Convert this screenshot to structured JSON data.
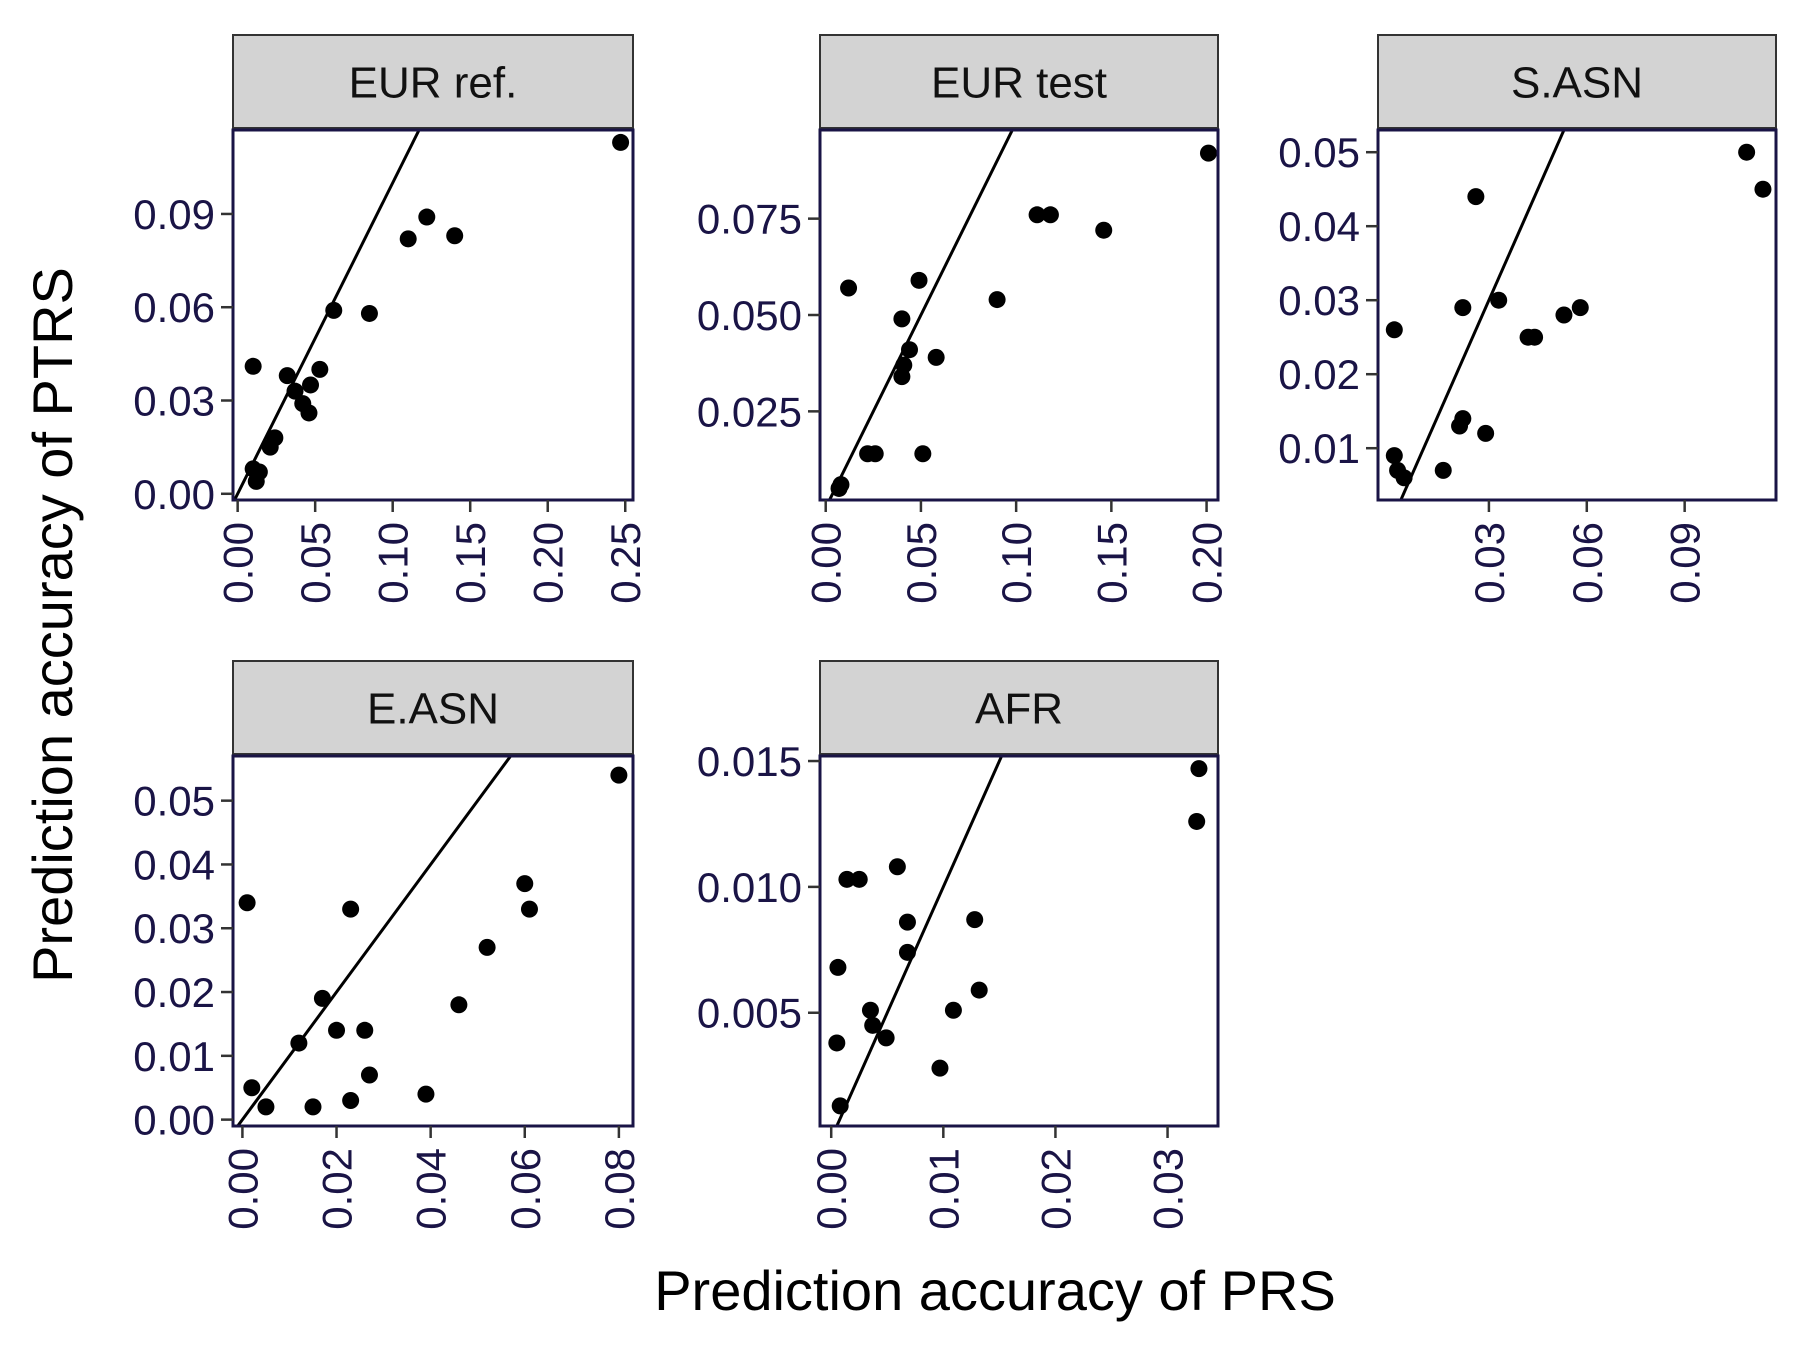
{
  "chart_data": {
    "type": "scatter",
    "xlabel": "Prediction accuracy of PRS",
    "ylabel": "Prediction accuracy of PTRS",
    "reference_line": "y = x",
    "grid": false,
    "legend": "none",
    "colors": {
      "point": "#000000",
      "panel_border": "#1a1446",
      "strip_fill": "#d3d3d3",
      "tick_text": "#1a1446"
    },
    "panels": [
      {
        "title": "EUR ref.",
        "xlim": [
          -0.003,
          0.255
        ],
        "ylim": [
          -0.002,
          0.117
        ],
        "xticks": [
          "0.00",
          "0.05",
          "0.10",
          "0.15",
          "0.20",
          "0.25"
        ],
        "xtick_values": [
          0,
          0.05,
          0.1,
          0.15,
          0.2,
          0.25
        ],
        "yticks": [
          "0.00",
          "0.03",
          "0.06",
          "0.09"
        ],
        "ytick_values": [
          0,
          0.03,
          0.06,
          0.09
        ],
        "x": [
          0.247,
          0.122,
          0.11,
          0.14,
          0.085,
          0.062,
          0.053,
          0.047,
          0.046,
          0.042,
          0.037,
          0.032,
          0.024,
          0.021,
          0.012,
          0.01,
          0.014,
          0.01
        ],
        "y": [
          0.113,
          0.089,
          0.082,
          0.083,
          0.058,
          0.059,
          0.04,
          0.035,
          0.026,
          0.029,
          0.033,
          0.038,
          0.018,
          0.015,
          0.004,
          0.008,
          0.007,
          0.041
        ]
      },
      {
        "title": "EUR test",
        "xlim": [
          -0.003,
          0.206
        ],
        "ylim": [
          0.002,
          0.098
        ],
        "xticks": [
          "0.00",
          "0.05",
          "0.10",
          "0.15",
          "0.20"
        ],
        "xtick_values": [
          0,
          0.05,
          0.1,
          0.15,
          0.2
        ],
        "yticks": [
          "0.025",
          "0.050",
          "0.075"
        ],
        "ytick_values": [
          0.025,
          0.05,
          0.075
        ],
        "x": [
          0.201,
          0.118,
          0.111,
          0.146,
          0.09,
          0.049,
          0.058,
          0.044,
          0.041,
          0.04,
          0.04,
          0.012,
          0.022,
          0.026,
          0.051,
          0.008,
          0.007
        ],
        "y": [
          0.092,
          0.076,
          0.076,
          0.072,
          0.054,
          0.059,
          0.039,
          0.041,
          0.037,
          0.034,
          0.049,
          0.057,
          0.014,
          0.014,
          0.014,
          0.006,
          0.005
        ]
      },
      {
        "title": "S.ASN",
        "xlim": [
          -0.004,
          0.118
        ],
        "ylim": [
          0.003,
          0.053
        ],
        "xticks": [
          "0.03",
          "0.06",
          "0.09"
        ],
        "xtick_values": [
          0.03,
          0.06,
          0.09
        ],
        "yticks": [
          "0.01",
          "0.02",
          "0.03",
          "0.04",
          "0.05"
        ],
        "ytick_values": [
          0.01,
          0.02,
          0.03,
          0.04,
          0.05
        ],
        "x": [
          0.109,
          0.114,
          0.026,
          0.022,
          0.033,
          0.058,
          0.053,
          0.044,
          0.042,
          0.001,
          0.022,
          0.021,
          0.029,
          0.016,
          0.001,
          0.002,
          0.004
        ],
        "y": [
          0.05,
          0.045,
          0.044,
          0.029,
          0.03,
          0.029,
          0.028,
          0.025,
          0.025,
          0.026,
          0.014,
          0.013,
          0.012,
          0.007,
          0.009,
          0.007,
          0.006
        ]
      },
      {
        "title": "E.ASN",
        "xlim": [
          -0.002,
          0.083
        ],
        "ylim": [
          -0.001,
          0.057
        ],
        "xticks": [
          "0.00",
          "0.02",
          "0.04",
          "0.06",
          "0.08"
        ],
        "xtick_values": [
          0,
          0.02,
          0.04,
          0.06,
          0.08
        ],
        "yticks": [
          "0.00",
          "0.01",
          "0.02",
          "0.03",
          "0.04",
          "0.05"
        ],
        "ytick_values": [
          0,
          0.01,
          0.02,
          0.03,
          0.04,
          0.05
        ],
        "x": [
          0.08,
          0.06,
          0.061,
          0.052,
          0.046,
          0.039,
          0.023,
          0.027,
          0.026,
          0.02,
          0.017,
          0.012,
          0.023,
          0.015,
          0.005,
          0.002,
          0.001
        ],
        "y": [
          0.054,
          0.037,
          0.033,
          0.027,
          0.018,
          0.004,
          0.033,
          0.007,
          0.014,
          0.014,
          0.019,
          0.012,
          0.003,
          0.002,
          0.002,
          0.005,
          0.034
        ]
      },
      {
        "title": "AFR",
        "xlim": [
          -0.001,
          0.0345
        ],
        "ylim": [
          0.0005,
          0.0152
        ],
        "xticks": [
          "0.00",
          "0.01",
          "0.02",
          "0.03"
        ],
        "xtick_values": [
          0,
          0.01,
          0.02,
          0.03
        ],
        "yticks": [
          "0.005",
          "0.010",
          "0.015"
        ],
        "ytick_values": [
          0.005,
          0.01,
          0.015
        ],
        "x": [
          0.0328,
          0.0326,
          0.0059,
          0.0014,
          0.0025,
          0.0068,
          0.0128,
          0.0068,
          0.0132,
          0.0109,
          0.0035,
          0.0037,
          0.0049,
          0.0097,
          0.0006,
          0.0005,
          0.0008
        ],
        "y": [
          0.0147,
          0.0126,
          0.0108,
          0.0103,
          0.0103,
          0.0086,
          0.0087,
          0.0074,
          0.0059,
          0.0051,
          0.0051,
          0.0045,
          0.004,
          0.0028,
          0.0068,
          0.0038,
          0.0013
        ]
      }
    ]
  }
}
